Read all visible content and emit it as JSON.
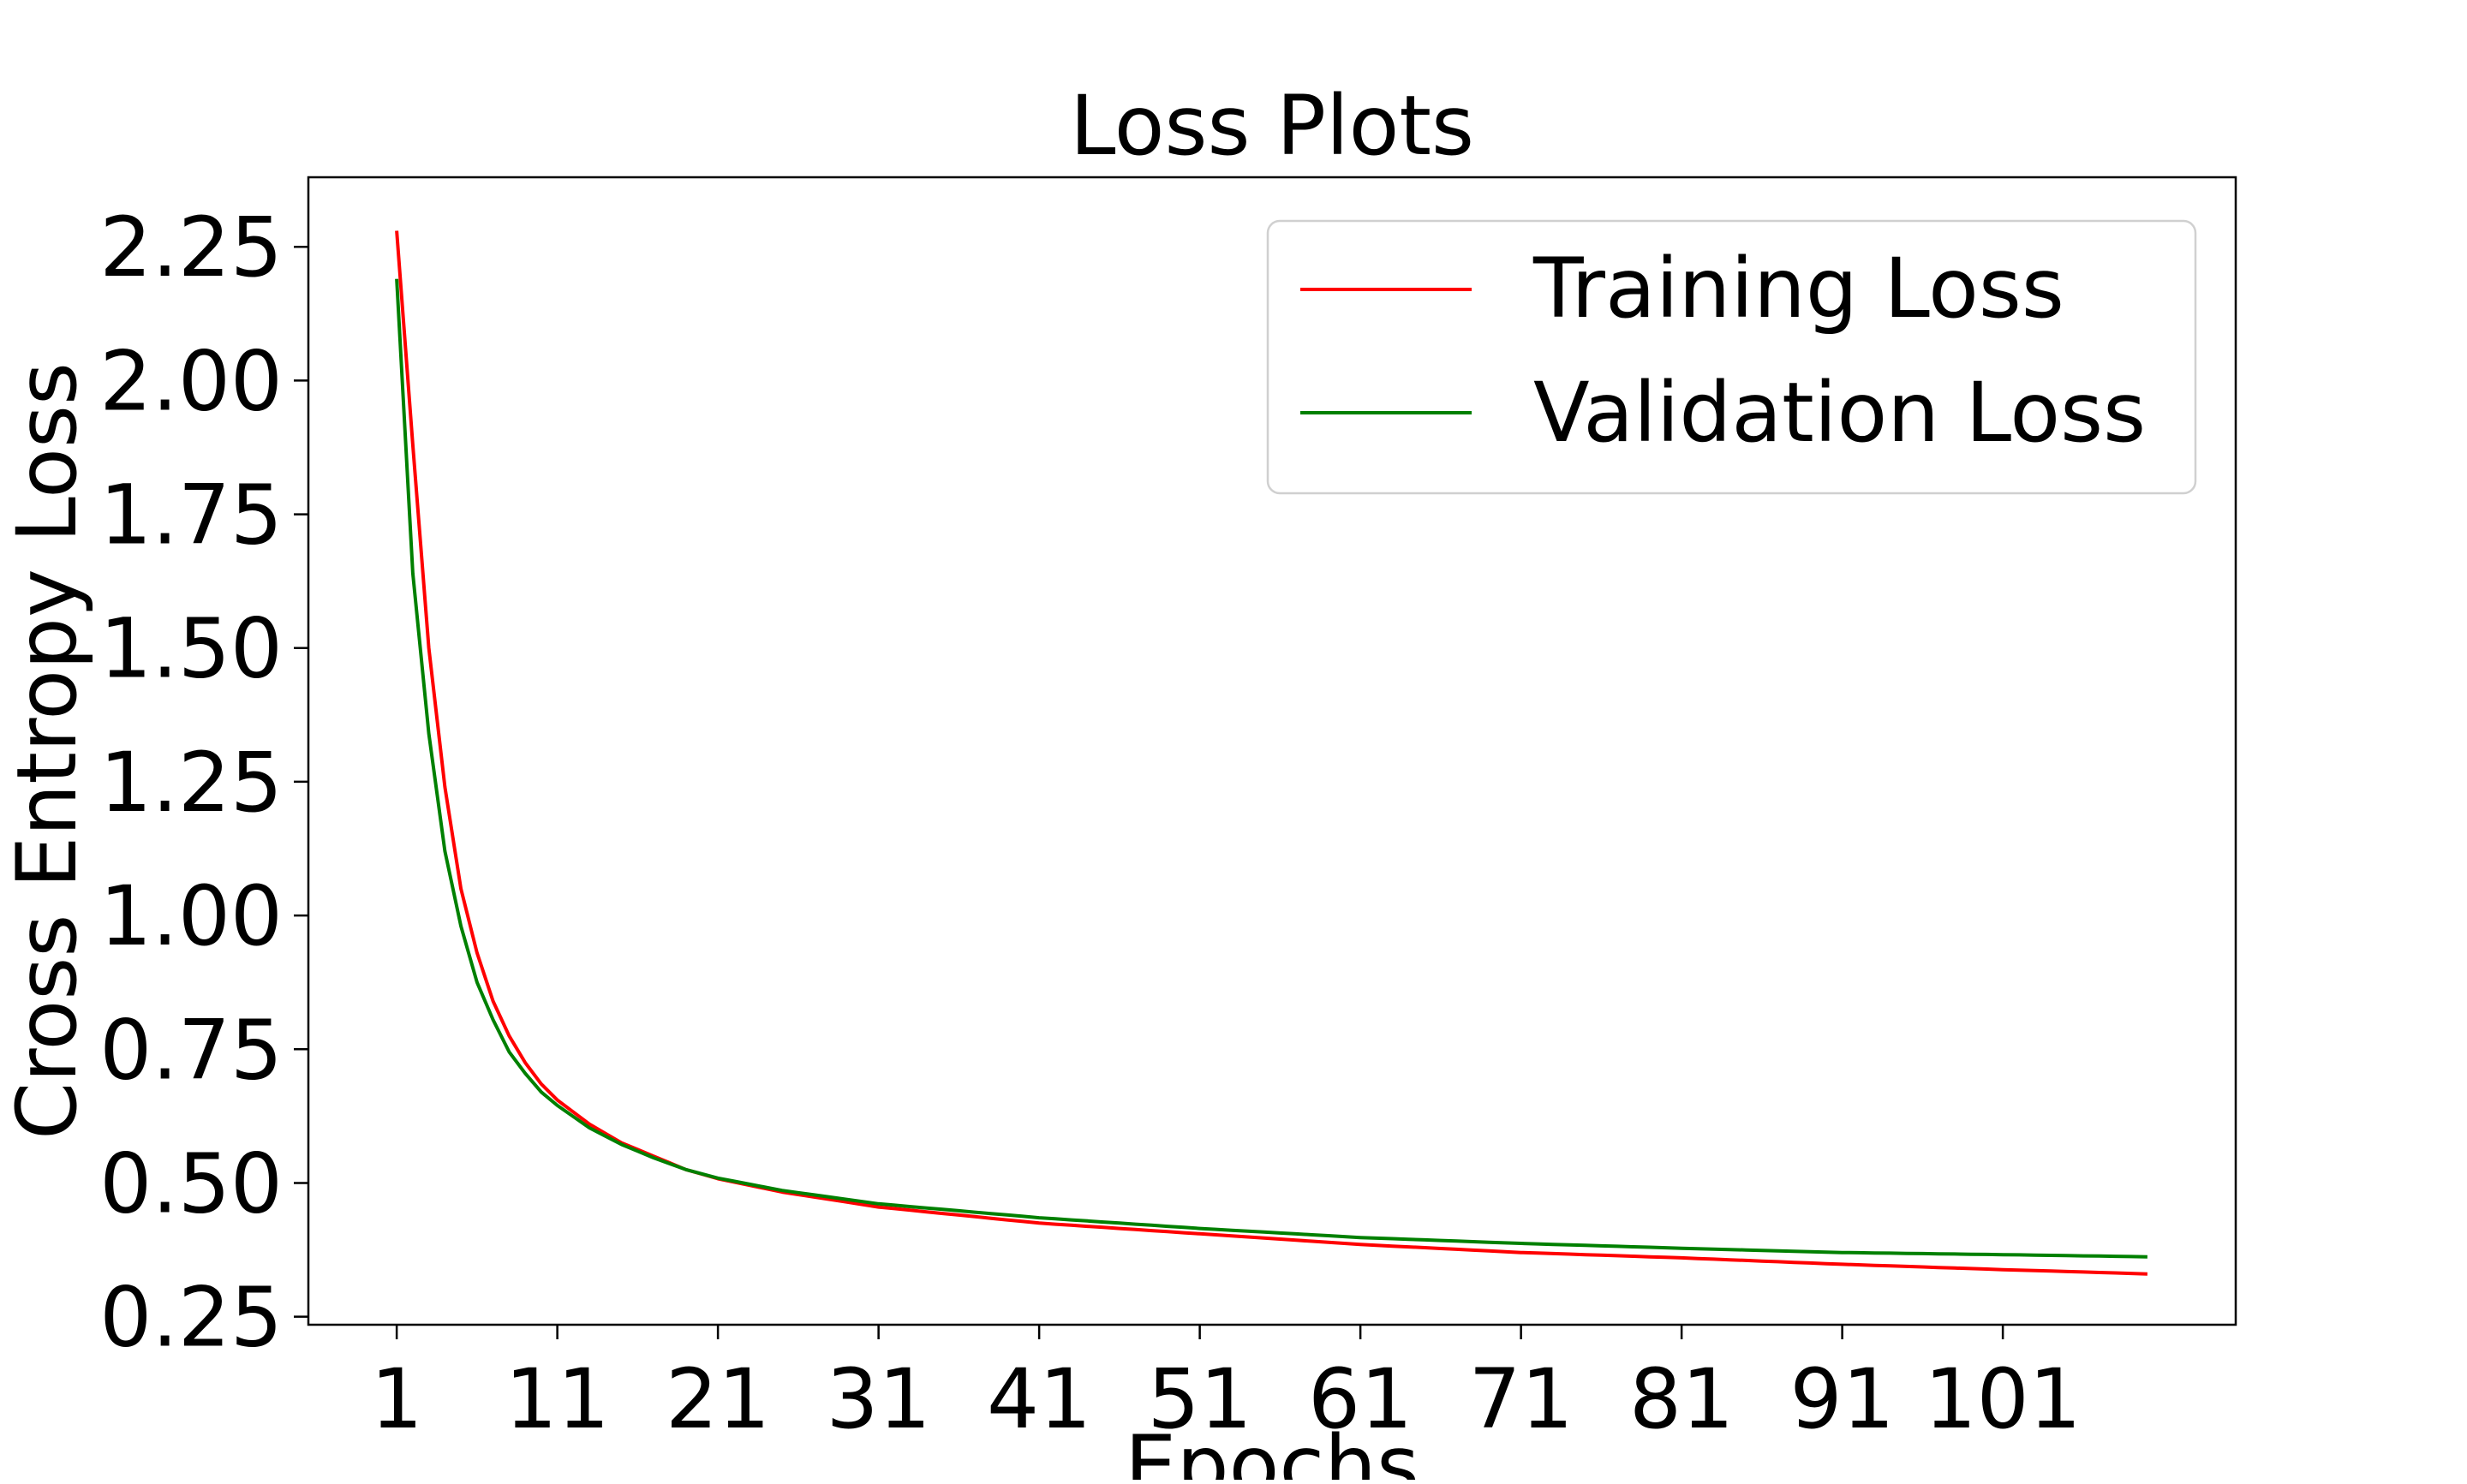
{
  "chart_data": {
    "type": "line",
    "title": "Loss Plots",
    "xlabel": "Epochs",
    "ylabel": "Cross Entropy Loss",
    "x_range": [
      1,
      110
    ],
    "xlim": [
      -4.5,
      115.5
    ],
    "ylim": [
      0.235,
      2.38
    ],
    "x_ticks": [
      1,
      11,
      21,
      31,
      41,
      51,
      61,
      71,
      81,
      91,
      101
    ],
    "y_ticks": [
      0.25,
      0.5,
      0.75,
      1.0,
      1.25,
      1.5,
      1.75,
      2.0,
      2.25
    ],
    "grid": false,
    "legend_position": "top-right",
    "series": [
      {
        "name": "Training Loss",
        "color": "#ff0000",
        "keypoints": [
          [
            1,
            2.28
          ],
          [
            2,
            1.88
          ],
          [
            3,
            1.5
          ],
          [
            4,
            1.24
          ],
          [
            5,
            1.05
          ],
          [
            6,
            0.93
          ],
          [
            7,
            0.84
          ],
          [
            8,
            0.775
          ],
          [
            9,
            0.725
          ],
          [
            10,
            0.685
          ],
          [
            11,
            0.655
          ],
          [
            13,
            0.61
          ],
          [
            15,
            0.575
          ],
          [
            17,
            0.55
          ],
          [
            19,
            0.525
          ],
          [
            21,
            0.508
          ],
          [
            25,
            0.483
          ],
          [
            31,
            0.455
          ],
          [
            41,
            0.425
          ],
          [
            51,
            0.405
          ],
          [
            61,
            0.385
          ],
          [
            71,
            0.37
          ],
          [
            81,
            0.36
          ],
          [
            91,
            0.348
          ],
          [
            101,
            0.338
          ],
          [
            110,
            0.33
          ]
        ]
      },
      {
        "name": "Validation Loss",
        "color": "#008000",
        "keypoints": [
          [
            1,
            2.19
          ],
          [
            2,
            1.64
          ],
          [
            3,
            1.34
          ],
          [
            4,
            1.12
          ],
          [
            5,
            0.98
          ],
          [
            6,
            0.875
          ],
          [
            7,
            0.805
          ],
          [
            8,
            0.745
          ],
          [
            9,
            0.705
          ],
          [
            10,
            0.67
          ],
          [
            11,
            0.645
          ],
          [
            13,
            0.603
          ],
          [
            15,
            0.572
          ],
          [
            17,
            0.547
          ],
          [
            19,
            0.525
          ],
          [
            21,
            0.509
          ],
          [
            25,
            0.486
          ],
          [
            31,
            0.461
          ],
          [
            41,
            0.435
          ],
          [
            51,
            0.415
          ],
          [
            61,
            0.398
          ],
          [
            71,
            0.387
          ],
          [
            81,
            0.378
          ],
          [
            91,
            0.37
          ],
          [
            101,
            0.366
          ],
          [
            110,
            0.362
          ]
        ]
      }
    ]
  }
}
